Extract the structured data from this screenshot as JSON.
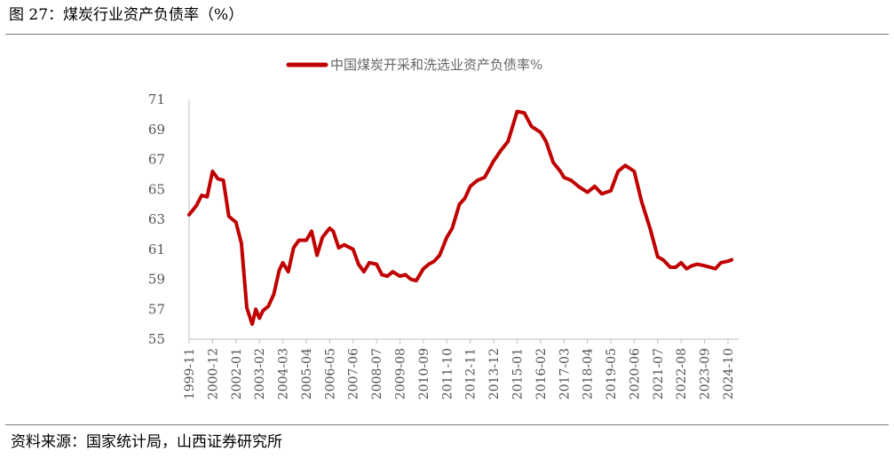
{
  "header": {
    "figure_title": "图 27：煤炭行业资产负债率（%）"
  },
  "footer": {
    "source": "资料来源：国家统计局，山西证券研究所"
  },
  "colors": {
    "series": "#c00000",
    "axis": "#bfbfbf",
    "rule": "#7a7a7a"
  },
  "chart_data": {
    "type": "line",
    "title": "",
    "xlabel": "",
    "ylabel": "",
    "ylim": [
      55,
      71
    ],
    "yticks": [
      "55",
      "57",
      "59",
      "61",
      "63",
      "65",
      "67",
      "69",
      "71"
    ],
    "x_tick_labels": [
      "1999-11",
      "2000-12",
      "2002-01",
      "2003-02",
      "2004-03",
      "2005-04",
      "2006-05",
      "2007-06",
      "2008-07",
      "2009-08",
      "2010-09",
      "2011-10",
      "2012-11",
      "2013-12",
      "2015-01",
      "2016-02",
      "2017-03",
      "2018-04",
      "2019-05",
      "2020-06",
      "2021-07",
      "2022-08",
      "2023-09",
      "2024-10"
    ],
    "grid": false,
    "legend": "top-center",
    "series": [
      {
        "name": "中国煤炭开采和洗选业资产负债率%",
        "x": [
          "1999-11",
          "2000-03",
          "2000-06",
          "2000-09",
          "2000-12",
          "2001-03",
          "2001-06",
          "2001-09",
          "2002-01",
          "2002-04",
          "2002-07",
          "2002-10",
          "2002-12",
          "2003-02",
          "2003-04",
          "2003-07",
          "2003-10",
          "2004-01",
          "2004-03",
          "2004-06",
          "2004-09",
          "2004-12",
          "2005-04",
          "2005-07",
          "2005-10",
          "2006-01",
          "2006-05",
          "2006-07",
          "2006-10",
          "2007-01",
          "2007-06",
          "2007-09",
          "2007-12",
          "2008-03",
          "2008-07",
          "2008-10",
          "2009-01",
          "2009-04",
          "2009-08",
          "2009-11",
          "2010-02",
          "2010-05",
          "2010-09",
          "2010-12",
          "2011-03",
          "2011-06",
          "2011-10",
          "2012-01",
          "2012-05",
          "2012-08",
          "2012-11",
          "2013-03",
          "2013-07",
          "2013-12",
          "2014-04",
          "2014-08",
          "2015-01",
          "2015-05",
          "2015-09",
          "2016-02",
          "2016-05",
          "2016-09",
          "2017-01",
          "2017-03",
          "2017-07",
          "2017-11",
          "2018-04",
          "2018-08",
          "2018-12",
          "2019-05",
          "2019-09",
          "2020-01",
          "2020-06",
          "2020-10",
          "2021-03",
          "2021-07",
          "2021-10",
          "2022-02",
          "2022-05",
          "2022-08",
          "2022-11",
          "2023-02",
          "2023-05",
          "2023-09",
          "2023-12",
          "2024-03",
          "2024-06",
          "2024-10",
          "2024-12"
        ],
        "values": [
          63.3,
          63.9,
          64.6,
          64.5,
          66.2,
          65.7,
          65.6,
          63.2,
          62.8,
          61.4,
          57.1,
          56.0,
          57.0,
          56.4,
          56.9,
          57.2,
          58.0,
          59.6,
          60.1,
          59.5,
          61.1,
          61.6,
          61.6,
          62.2,
          60.6,
          61.8,
          62.4,
          62.2,
          61.1,
          61.3,
          61.0,
          60.0,
          59.5,
          60.1,
          60.0,
          59.3,
          59.2,
          59.5,
          59.2,
          59.3,
          59.0,
          58.9,
          59.7,
          60.0,
          60.2,
          60.6,
          61.8,
          62.4,
          64.0,
          64.4,
          65.2,
          65.6,
          65.8,
          66.9,
          67.6,
          68.2,
          70.2,
          70.1,
          69.2,
          68.8,
          68.2,
          66.8,
          66.2,
          65.8,
          65.6,
          65.2,
          64.8,
          65.2,
          64.7,
          64.9,
          66.2,
          66.6,
          66.2,
          64.2,
          62.3,
          60.5,
          60.3,
          59.8,
          59.8,
          60.1,
          59.7,
          59.9,
          60.0,
          59.9,
          59.8,
          59.7,
          60.1,
          60.2,
          60.3
        ]
      }
    ]
  }
}
